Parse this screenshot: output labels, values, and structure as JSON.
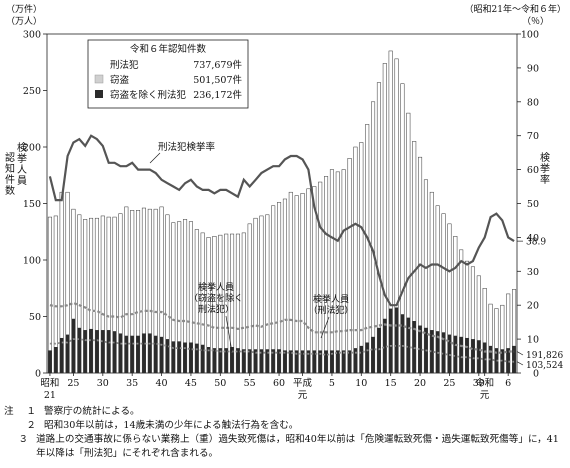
{
  "chart_data": {
    "type": "bar",
    "title": "",
    "period_label": "（昭和21年～令和６年）",
    "left_axis": {
      "unit_line1": "（万件）",
      "unit_line2": "（万人）",
      "label_count": "認知件数",
      "label_persons": "検挙人員",
      "ylim": [
        0,
        300
      ],
      "ticks": [
        0,
        50,
        100,
        150,
        200,
        250,
        300
      ]
    },
    "right_axis": {
      "unit": "（％）",
      "label": "検挙率",
      "ylim": [
        0,
        100
      ],
      "ticks": [
        0,
        10,
        20,
        30,
        40,
        50,
        60,
        70,
        80,
        90,
        100
      ]
    },
    "x_ticks": [
      {
        "i": 0,
        "label": "昭和",
        "label2": "21"
      },
      {
        "i": 4,
        "label": "25"
      },
      {
        "i": 9,
        "label": "30"
      },
      {
        "i": 14,
        "label": "35"
      },
      {
        "i": 19,
        "label": "40"
      },
      {
        "i": 24,
        "label": "45"
      },
      {
        "i": 29,
        "label": "50"
      },
      {
        "i": 34,
        "label": "55"
      },
      {
        "i": 39,
        "label": "60"
      },
      {
        "i": 43,
        "label": "平成",
        "label2": "元"
      },
      {
        "i": 48,
        "label": "5"
      },
      {
        "i": 53,
        "label": "10"
      },
      {
        "i": 58,
        "label": "15"
      },
      {
        "i": 63,
        "label": "20"
      },
      {
        "i": 68,
        "label": "25"
      },
      {
        "i": 73,
        "label": "30"
      },
      {
        "i": 74,
        "label": "令和",
        "label2": "元"
      },
      {
        "i": 78,
        "label": "6"
      }
    ],
    "legend": {
      "title": "令和６年認知件数",
      "entries": [
        {
          "name": "刑法犯",
          "value": "737,679件"
        },
        {
          "name": "窃盗",
          "value": "501,507件"
        },
        {
          "name": "窃盗を除く刑法犯",
          "value": "236,172件"
        }
      ]
    },
    "labels": {
      "rate_line": "刑法犯検挙率",
      "persons_excl_l1": "検挙人員",
      "persons_excl_l2": "（窃盗を除く",
      "persons_excl_l3": "刑法犯）",
      "persons_l1": "検挙人員",
      "persons_l2": "（刑法犯）"
    },
    "end_labels": {
      "rate": "38.9",
      "persons_total": "191,826",
      "persons_excl": "103,524"
    },
    "series": [
      {
        "name": "刑法犯",
        "values": [
          138,
          139,
          160,
          160,
          145,
          140,
          136,
          137,
          137,
          139,
          138,
          138,
          141,
          147,
          144,
          144,
          146,
          145,
          145,
          147,
          140,
          133,
          134,
          136,
          134,
          127,
          124,
          120,
          121,
          122,
          123,
          123,
          123,
          124,
          132,
          137,
          139,
          140,
          148,
          151,
          154,
          160,
          157,
          159,
          163,
          165,
          169,
          174,
          180,
          178,
          180,
          190,
          200,
          204,
          220,
          240,
          257,
          274,
          285,
          278,
          256,
          230,
          205,
          191,
          171,
          160,
          148,
          141,
          132,
          121,
          109,
          99,
          94,
          86,
          75,
          61,
          57,
          60,
          70,
          74
        ]
      },
      {
        "name": "窃盗を除く刑法犯",
        "values": [
          20,
          23,
          31,
          34,
          48,
          40,
          38,
          39,
          38,
          38,
          38,
          37,
          35,
          33,
          33,
          33,
          35,
          35,
          33,
          32,
          30,
          28,
          28,
          27,
          27,
          26,
          25,
          23,
          22,
          22,
          22,
          23,
          22,
          21,
          21,
          21,
          21,
          21,
          21,
          21,
          20,
          20,
          20,
          20,
          20,
          20,
          20,
          20,
          20,
          20,
          20,
          20,
          22,
          24,
          27,
          32,
          40,
          48,
          57,
          58,
          52,
          49,
          46,
          42,
          40,
          38,
          37,
          36,
          34,
          33,
          32,
          31,
          30,
          29,
          27,
          24,
          22,
          21,
          22,
          24
        ]
      },
      {
        "name": "検挙人員（刑法犯）",
        "values": [
          60,
          59,
          59,
          60,
          62,
          60,
          58,
          55,
          55,
          52,
          50,
          50,
          49,
          52,
          52,
          54,
          55,
          55,
          54,
          54,
          51,
          47,
          46,
          46,
          45,
          44,
          43,
          42,
          40,
          40,
          40,
          40,
          39,
          40,
          41,
          42,
          41,
          43,
          44,
          45,
          47,
          47,
          46,
          46,
          40,
          36,
          36,
          36,
          36,
          37,
          37,
          38,
          38,
          38,
          40,
          41,
          42,
          43,
          42,
          42,
          42,
          40,
          39,
          37,
          35,
          33,
          32,
          30,
          28,
          25,
          24,
          23,
          21,
          21,
          19,
          19,
          18,
          18,
          19,
          19
        ]
      },
      {
        "name": "検挙人員（窃盗を除く刑法犯）",
        "values": [
          26,
          26,
          27,
          27,
          30,
          30,
          29,
          29,
          29,
          28,
          27,
          27,
          26,
          26,
          26,
          26,
          26,
          26,
          26,
          25,
          24,
          22,
          22,
          22,
          21,
          21,
          20,
          20,
          20,
          19,
          19,
          19,
          19,
          19,
          19,
          18,
          18,
          18,
          18,
          18,
          18,
          18,
          17,
          17,
          17,
          17,
          17,
          16,
          17,
          18,
          18,
          18,
          18,
          18,
          20,
          21,
          21,
          23,
          24,
          24,
          24,
          23,
          22,
          21,
          20,
          19,
          18,
          17,
          16,
          15,
          14,
          14,
          13,
          13,
          12,
          12,
          11,
          11,
          10,
          10
        ]
      },
      {
        "name": "刑法犯検挙率",
        "values": [
          58,
          51,
          51,
          64,
          68,
          69,
          67,
          70,
          69,
          67,
          62,
          62,
          61,
          61,
          62,
          60,
          60,
          60,
          59,
          57,
          56,
          55,
          54,
          56,
          57,
          55,
          54,
          54,
          53,
          54,
          54,
          53,
          52,
          57,
          55,
          57,
          59,
          60,
          61,
          61,
          63,
          64,
          64,
          63,
          60,
          49,
          43,
          41,
          40,
          39,
          42,
          43,
          44,
          43,
          40,
          36,
          29,
          23,
          20,
          20,
          24,
          28,
          30,
          32,
          31,
          32,
          32,
          31,
          30,
          31,
          33,
          32,
          33,
          37,
          40,
          46,
          47,
          45,
          40,
          38.9
        ]
      }
    ]
  },
  "notes": {
    "head": "注",
    "items": [
      {
        "num": "１",
        "text": "警察庁の統計による。"
      },
      {
        "num": "２",
        "text": "昭和30年以前は，14歳未満の少年による触法行為を含む。"
      },
      {
        "num": "３",
        "text": "道路上の交通事故に係らない業務上（重）過失致死傷は，昭和40年以前は「危険運転致死傷・過失運転致死傷等」に，41年以降は「刑法犯」にそれぞれ含まれる。"
      }
    ]
  },
  "colors": {
    "bar_total": "#ffffff",
    "bar_outline": "#333333",
    "bar_excl": "#2b2b2b",
    "rate_line": "#555555",
    "persons_line": "#8a8a8a",
    "legend_theft": "#d0d0d0"
  }
}
